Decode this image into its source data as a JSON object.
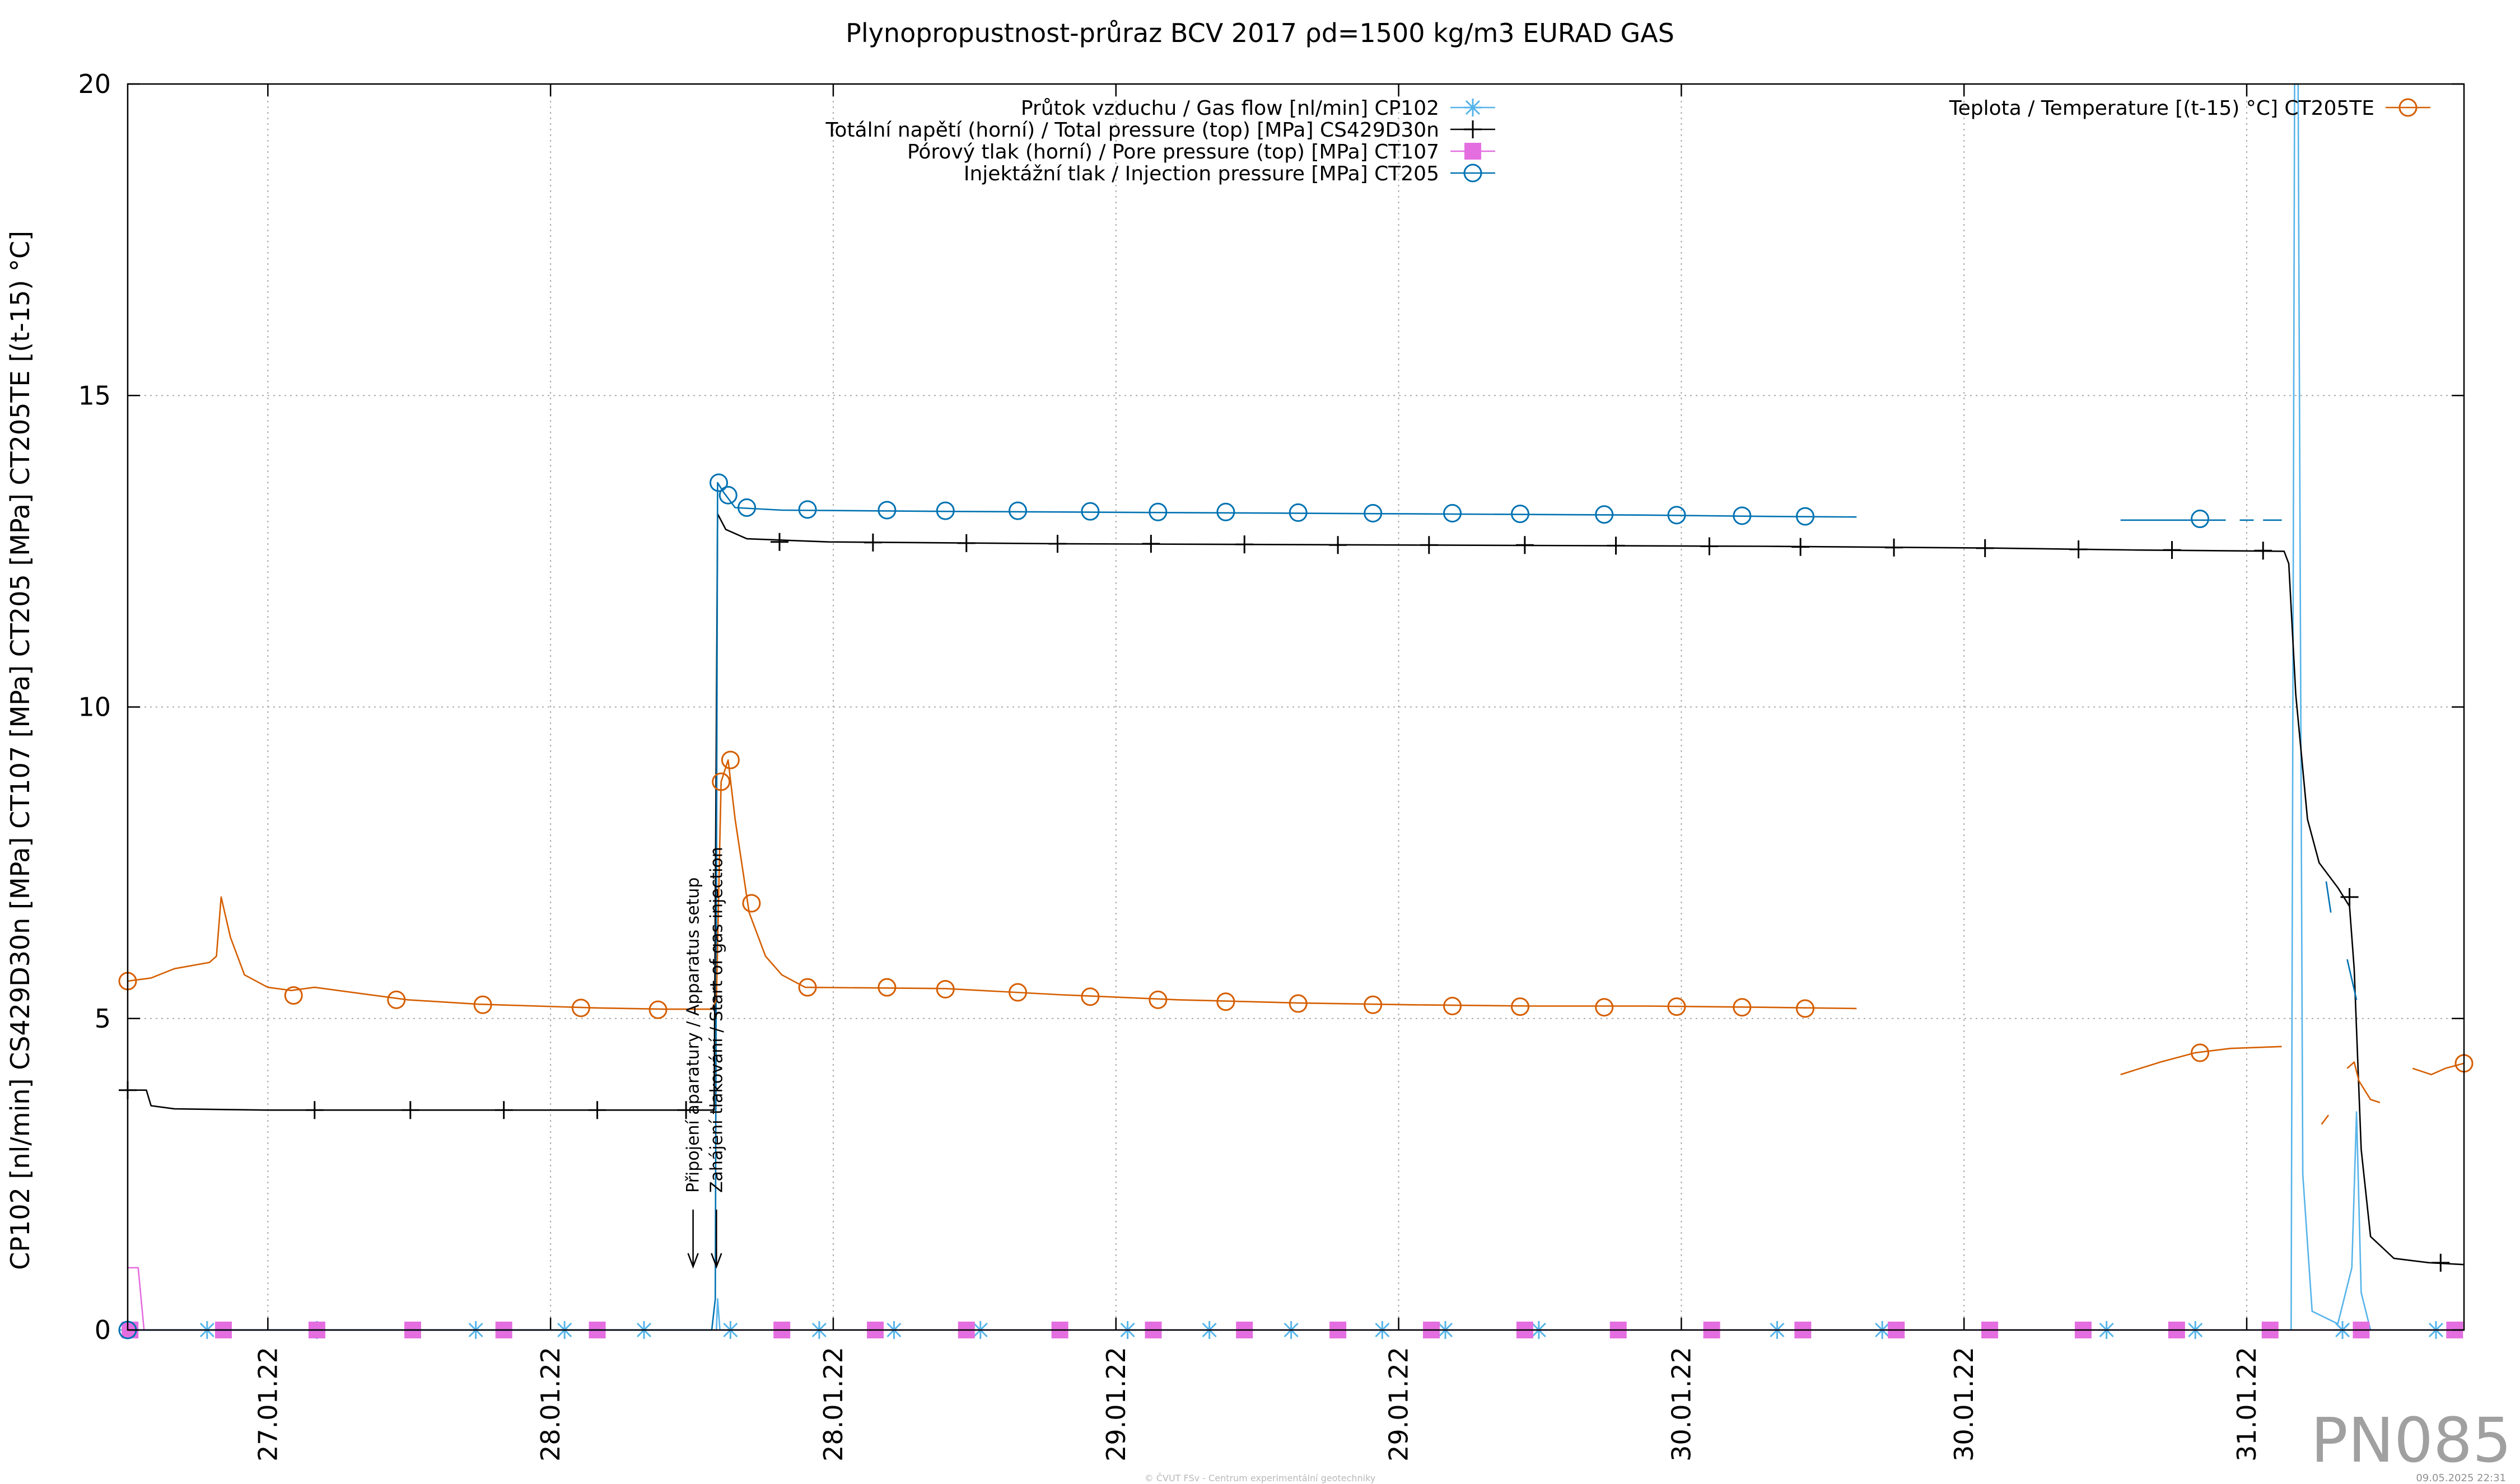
{
  "chart_data": {
    "type": "line",
    "title": "Plynopropustnost-průraz BCV 2017 ρd=1500 kg/m3 EURAD GAS",
    "xlabel": "",
    "ylabel": "CP102 [nl/min] CS429D30n [MPa] CT107 [MPa] CT205 [MPa] CT205TE [(t-15) °C]",
    "xlim": [
      0,
      100
    ],
    "ylim": [
      0,
      20
    ],
    "yticks": [
      "0",
      "5",
      "10",
      "15",
      "20"
    ],
    "xticks": [
      {
        "x": 6,
        "label": "27.01.22"
      },
      {
        "x": 18.1,
        "label": "28.01.22"
      },
      {
        "x": 30.2,
        "label": "28.01.22"
      },
      {
        "x": 42.3,
        "label": "29.01.22"
      },
      {
        "x": 54.4,
        "label": "29.01.22"
      },
      {
        "x": 66.5,
        "label": "30.01.22"
      },
      {
        "x": 78.6,
        "label": "30.01.22"
      },
      {
        "x": 90.7,
        "label": "31.01.22"
      }
    ],
    "grid": true,
    "legend_left_position": "top-center",
    "legend_right_position": "top-right",
    "annotations": [
      {
        "text": "Připojení aparatury / Apparatus setup",
        "x": 24.2
      },
      {
        "text": "Zahájení tlakování / Start of gas injection",
        "x": 25.2
      }
    ],
    "watermark": "PN085",
    "footer_credit": "© ČVUT FSv - Centrum experimentální geotechniky",
    "footer_date": "09.05.2025 22:31",
    "series": [
      {
        "name": "Průtok vzduchu / Gas flow [nl/min] CP102",
        "color": "#56b4e9",
        "marker": "asterisk",
        "segments": [
          [
            [
              0,
              0
            ],
            [
              25.2,
              0
            ],
            [
              25.25,
              0.5
            ],
            [
              25.35,
              0
            ],
            [
              92.6,
              0
            ],
            [
              92.75,
              20
            ],
            [
              92.9,
              20
            ],
            [
              93.1,
              2.5
            ],
            [
              93.5,
              0.3
            ],
            [
              94.6,
              0.1
            ],
            [
              95.2,
              1.0
            ],
            [
              95.4,
              3.5
            ],
            [
              95.6,
              0.6
            ],
            [
              96,
              0
            ],
            [
              100,
              0
            ]
          ]
        ],
        "markers": [
          0,
          3.4,
          8.1,
          14.9,
          18.7,
          22.1,
          25.8,
          29.6,
          32.8,
          36.5,
          42.8,
          46.3,
          49.8,
          53.7,
          56.4,
          60.4,
          70.6,
          75.1,
          84.7,
          88.5,
          94.8,
          98.8
        ]
      },
      {
        "name": "Totální napětí (horní) / Total pressure (top) [MPa] CS429D30n",
        "color": "#000000",
        "marker": "plus",
        "segments": [
          [
            [
              0,
              3.85
            ],
            [
              0.8,
              3.85
            ],
            [
              1.0,
              3.6
            ],
            [
              2,
              3.55
            ],
            [
              6,
              3.53
            ],
            [
              12,
              3.53
            ],
            [
              18,
              3.53
            ],
            [
              24.2,
              3.53
            ],
            [
              25.1,
              3.53
            ],
            [
              25.25,
              13.1
            ],
            [
              25.6,
              12.85
            ],
            [
              26.5,
              12.7
            ],
            [
              30,
              12.65
            ],
            [
              40,
              12.62
            ],
            [
              55,
              12.6
            ],
            [
              70,
              12.58
            ],
            [
              80,
              12.55
            ],
            [
              86,
              12.52
            ],
            [
              92.3,
              12.5
            ],
            [
              92.5,
              12.3
            ],
            [
              92.8,
              10.2
            ],
            [
              93.3,
              8.2
            ],
            [
              93.8,
              7.5
            ],
            [
              94.6,
              7.1
            ],
            [
              95.1,
              6.8
            ],
            [
              95.3,
              5.8
            ],
            [
              95.6,
              2.9
            ],
            [
              96,
              1.5
            ],
            [
              97,
              1.15
            ],
            [
              98.5,
              1.08
            ],
            [
              100,
              1.05
            ]
          ]
        ],
        "marker_points": [
          [
            0,
            3.85
          ],
          [
            8,
            3.53
          ],
          [
            12.1,
            3.53
          ],
          [
            16.1,
            3.53
          ],
          [
            20.1,
            3.53
          ],
          [
            23.9,
            3.53
          ],
          [
            27.9,
            12.65
          ],
          [
            31.9,
            12.64
          ],
          [
            35.9,
            12.63
          ],
          [
            39.8,
            12.62
          ],
          [
            43.8,
            12.62
          ],
          [
            47.8,
            12.61
          ],
          [
            51.8,
            12.6
          ],
          [
            55.7,
            12.6
          ],
          [
            59.8,
            12.6
          ],
          [
            63.7,
            12.59
          ],
          [
            67.7,
            12.58
          ],
          [
            71.6,
            12.57
          ],
          [
            75.6,
            12.56
          ],
          [
            79.5,
            12.55
          ],
          [
            83.5,
            12.53
          ],
          [
            87.5,
            12.52
          ],
          [
            91.4,
            12.51
          ],
          [
            95.1,
            6.95
          ],
          [
            99,
            1.08
          ]
        ]
      },
      {
        "name": "Pórový tlak (horní) / Pore pressure (top) [MPa] CT107",
        "color": "#e46ee0",
        "marker": "square",
        "segments": [
          [
            [
              0,
              1.0
            ],
            [
              0.45,
              1.0
            ],
            [
              0.7,
              0
            ],
            [
              100,
              0
            ]
          ]
        ],
        "markers": [
          0.1,
          4.1,
          8.1,
          12.2,
          16.1,
          20.1,
          28,
          32,
          35.9,
          39.9,
          43.9,
          47.8,
          51.8,
          55.8,
          59.8,
          63.8,
          67.8,
          71.7,
          75.7,
          79.7,
          83.7,
          87.7,
          91.7,
          95.6,
          99.6
        ]
      },
      {
        "name": "Injektážní tlak / Injection pressure [MPa] CT205",
        "color": "#0072b2",
        "marker": "circle",
        "segments": [
          [
            [
              0,
              0
            ],
            [
              25.0,
              0
            ],
            [
              25.15,
              0.5
            ],
            [
              25.25,
              13.6
            ],
            [
              25.5,
              13.45
            ],
            [
              26,
              13.2
            ],
            [
              28,
              13.16
            ],
            [
              35,
              13.14
            ],
            [
              45,
              13.12
            ],
            [
              55,
              13.1
            ],
            [
              65,
              13.08
            ],
            [
              70,
              13.06
            ],
            [
              74,
              13.05
            ]
          ],
          [
            [
              85.3,
              13.0
            ],
            [
              89.8,
              13.0
            ]
          ],
          [
            [
              90.4,
              13.0
            ],
            [
              91.0,
              13.0
            ]
          ],
          [
            [
              91.4,
              13.0
            ],
            [
              92.2,
              13.0
            ]
          ],
          [
            [
              94.1,
              7.2
            ],
            [
              94.3,
              6.7
            ]
          ],
          [
            [
              95.0,
              5.95
            ],
            [
              95.4,
              5.3
            ]
          ]
        ],
        "markers": [
          [
            0,
            0
          ],
          [
            25.3,
            13.6
          ],
          [
            25.7,
            13.4
          ],
          [
            26.5,
            13.2
          ],
          [
            29.1,
            13.17
          ],
          [
            32.5,
            13.16
          ],
          [
            35,
            13.15
          ],
          [
            38.1,
            13.15
          ],
          [
            41.2,
            13.14
          ],
          [
            44.1,
            13.13
          ],
          [
            47,
            13.13
          ],
          [
            50.1,
            13.12
          ],
          [
            53.3,
            13.11
          ],
          [
            56.7,
            13.11
          ],
          [
            59.6,
            13.1
          ],
          [
            63.2,
            13.09
          ],
          [
            66.3,
            13.08
          ],
          [
            69.1,
            13.07
          ],
          [
            71.8,
            13.06
          ],
          [
            88.7,
            13.02
          ]
        ]
      },
      {
        "name": "Teplota / Temperature [(t-15) °C] CT205TE",
        "color": "#d55e00",
        "marker": "circle",
        "segments": [
          [
            [
              0,
              5.6
            ],
            [
              1,
              5.65
            ],
            [
              2,
              5.8
            ],
            [
              3.5,
              5.9
            ],
            [
              3.8,
              6.0
            ],
            [
              4.0,
              6.95
            ],
            [
              4.4,
              6.3
            ],
            [
              5,
              5.7
            ],
            [
              6,
              5.5
            ],
            [
              7,
              5.45
            ],
            [
              8,
              5.5
            ],
            [
              10,
              5.4
            ],
            [
              12,
              5.3
            ],
            [
              15,
              5.23
            ],
            [
              20,
              5.17
            ],
            [
              23,
              5.15
            ],
            [
              25,
              5.15
            ],
            [
              25.2,
              5.3
            ],
            [
              25.4,
              8.8
            ],
            [
              25.7,
              9.15
            ],
            [
              26,
              8.2
            ],
            [
              26.6,
              6.7
            ],
            [
              27.3,
              6.0
            ],
            [
              28,
              5.7
            ],
            [
              29,
              5.5
            ],
            [
              35,
              5.48
            ],
            [
              40,
              5.38
            ],
            [
              45,
              5.3
            ],
            [
              50,
              5.25
            ],
            [
              55,
              5.22
            ],
            [
              60,
              5.2
            ],
            [
              65,
              5.2
            ],
            [
              70,
              5.18
            ],
            [
              74,
              5.16
            ]
          ],
          [
            [
              85.3,
              4.1
            ],
            [
              87,
              4.3
            ],
            [
              88.5,
              4.45
            ],
            [
              90,
              4.52
            ],
            [
              92.2,
              4.55
            ]
          ],
          [
            [
              93.9,
              3.3
            ],
            [
              94.2,
              3.45
            ]
          ],
          [
            [
              95.0,
              4.2
            ],
            [
              95.3,
              4.3
            ],
            [
              95.5,
              4.0
            ],
            [
              96,
              3.7
            ],
            [
              96.4,
              3.65
            ]
          ],
          [
            [
              97.8,
              4.2
            ],
            [
              98.2,
              4.15
            ],
            [
              98.6,
              4.1
            ],
            [
              99.2,
              4.2
            ],
            [
              100,
              4.28
            ]
          ]
        ],
        "markers": [
          [
            0,
            5.6
          ],
          [
            7.1,
            5.37
          ],
          [
            11.5,
            5.3
          ],
          [
            15.2,
            5.22
          ],
          [
            19.4,
            5.17
          ],
          [
            22.7,
            5.14
          ],
          [
            25.4,
            8.8
          ],
          [
            25.8,
            9.15
          ],
          [
            26.7,
            6.85
          ],
          [
            29.1,
            5.5
          ],
          [
            32.5,
            5.5
          ],
          [
            35,
            5.47
          ],
          [
            38.1,
            5.42
          ],
          [
            41.2,
            5.35
          ],
          [
            44.1,
            5.3
          ],
          [
            47,
            5.27
          ],
          [
            50.1,
            5.24
          ],
          [
            53.3,
            5.22
          ],
          [
            56.7,
            5.2
          ],
          [
            59.6,
            5.19
          ],
          [
            63.2,
            5.18
          ],
          [
            66.3,
            5.19
          ],
          [
            69.1,
            5.18
          ],
          [
            71.8,
            5.16
          ],
          [
            88.7,
            4.45
          ],
          [
            100,
            4.28
          ]
        ]
      }
    ]
  }
}
